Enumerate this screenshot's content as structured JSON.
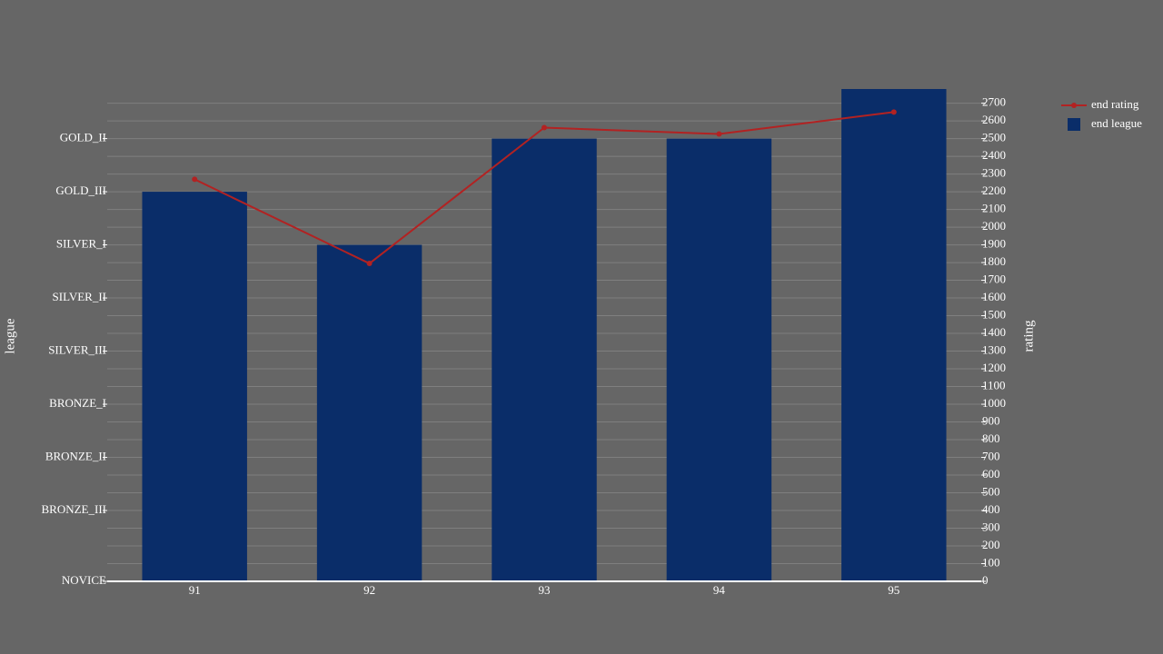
{
  "chart_data": {
    "type": "bar",
    "categories": [
      "91",
      "92",
      "93",
      "94",
      "95"
    ],
    "series": [
      {
        "name": "end rating",
        "type": "line",
        "color": "#b22222",
        "axis": "y2",
        "values": [
          2270,
          1795,
          2562,
          2526,
          2650
        ]
      },
      {
        "name": "end league",
        "type": "bar",
        "color": "#0a2d69",
        "values": [
          2200,
          1900,
          2500,
          2500,
          2800
        ]
      }
    ],
    "ylabel": "league",
    "y2label": "rating",
    "ylim": [
      0,
      2780
    ],
    "yticks": [
      {
        "value": 0,
        "label": "NOVICE"
      },
      {
        "value": 400,
        "label": "BRONZE_III"
      },
      {
        "value": 700,
        "label": "BRONZE_II"
      },
      {
        "value": 1000,
        "label": "BRONZE_I"
      },
      {
        "value": 1300,
        "label": "SILVER_III"
      },
      {
        "value": 1600,
        "label": "SILVER_II"
      },
      {
        "value": 1900,
        "label": "SILVER_I"
      },
      {
        "value": 2200,
        "label": "GOLD_III"
      },
      {
        "value": 2500,
        "label": "GOLD_II"
      }
    ],
    "y2lim": [
      0,
      2780
    ],
    "y2ticks": [
      0,
      100,
      200,
      300,
      400,
      500,
      600,
      700,
      800,
      900,
      1000,
      1100,
      1200,
      1300,
      1400,
      1500,
      1600,
      1700,
      1800,
      1900,
      2000,
      2100,
      2200,
      2300,
      2400,
      2500,
      2600,
      2700
    ],
    "grid": true,
    "legend": "top-right"
  }
}
